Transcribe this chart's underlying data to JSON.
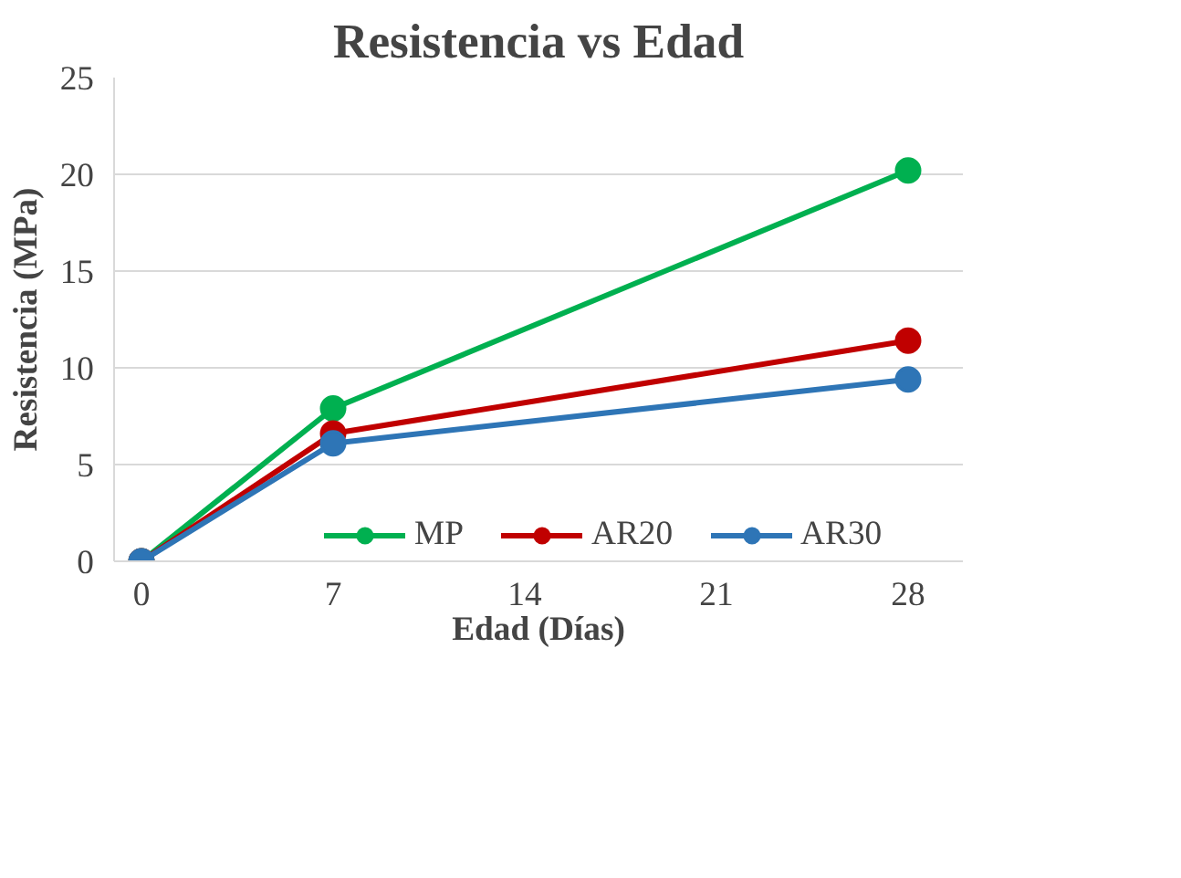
{
  "chart_data": {
    "type": "line",
    "title": "Resistencia vs Edad",
    "xlabel": "Edad (Días)",
    "ylabel": "Resistencia (MPa)",
    "x": [
      0,
      7,
      28
    ],
    "series": [
      {
        "name": "MP",
        "color": "#00b050",
        "values": [
          0,
          7.9,
          20.2
        ]
      },
      {
        "name": "AR20",
        "color": "#c00000",
        "values": [
          0,
          6.6,
          11.4
        ]
      },
      {
        "name": "AR30",
        "color": "#2e75b6",
        "values": [
          0,
          6.1,
          9.4
        ]
      }
    ],
    "xlim": [
      -1,
      30
    ],
    "ylim": [
      0,
      25
    ],
    "xticks": [
      0,
      7,
      14,
      21,
      28
    ],
    "yticks": [
      0,
      5,
      10,
      15,
      20,
      25
    ],
    "grid": "y",
    "legend": "bottom",
    "marker": "circle",
    "line_style": "solid"
  }
}
